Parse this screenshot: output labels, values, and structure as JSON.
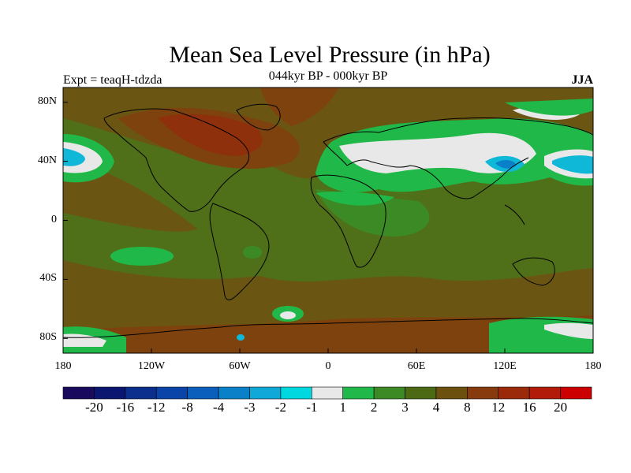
{
  "title": "Mean Sea Level Pressure (in hPa)",
  "subtitle_left": "Expt = teaqH-tdzda",
  "subtitle_center": "044kyr BP - 000kyr BP",
  "subtitle_right": "JJA",
  "lat_labels": [
    "80N",
    "40N",
    "0",
    "40S",
    "80S"
  ],
  "lat_values": [
    80,
    40,
    0,
    -40,
    -80
  ],
  "lon_labels": [
    "180",
    "120W",
    "60W",
    "0",
    "60E",
    "120E",
    "180"
  ],
  "lon_values": [
    -180,
    -120,
    -60,
    0,
    60,
    120,
    180
  ],
  "colorbar": {
    "labels": [
      "-20",
      "-16",
      "-12",
      "-8",
      "-4",
      "-3",
      "-2",
      "-1",
      "1",
      "2",
      "3",
      "4",
      "8",
      "12",
      "16",
      "20"
    ],
    "colors": [
      "#1a0a5e",
      "#0a1670",
      "#0c2e8c",
      "#0b44a8",
      "#0b5fbc",
      "#0a80c8",
      "#10a8d8",
      "#00d8e0",
      "#e8e8e8",
      "#20b848",
      "#3c8a26",
      "#4c6a14",
      "#6c5010",
      "#863a0e",
      "#9a2a0a",
      "#b21a0a",
      "#cc0000"
    ]
  },
  "colors": {
    "ocean_base": "#4f6f18",
    "land_base": "#6a5612",
    "warm": "#7e420e",
    "hot": "#8e300c",
    "green": "#20b848",
    "mid_green": "#3c8a26",
    "white": "#e8e8e8",
    "cyan": "#10b8d8",
    "blue": "#0a80c8"
  }
}
